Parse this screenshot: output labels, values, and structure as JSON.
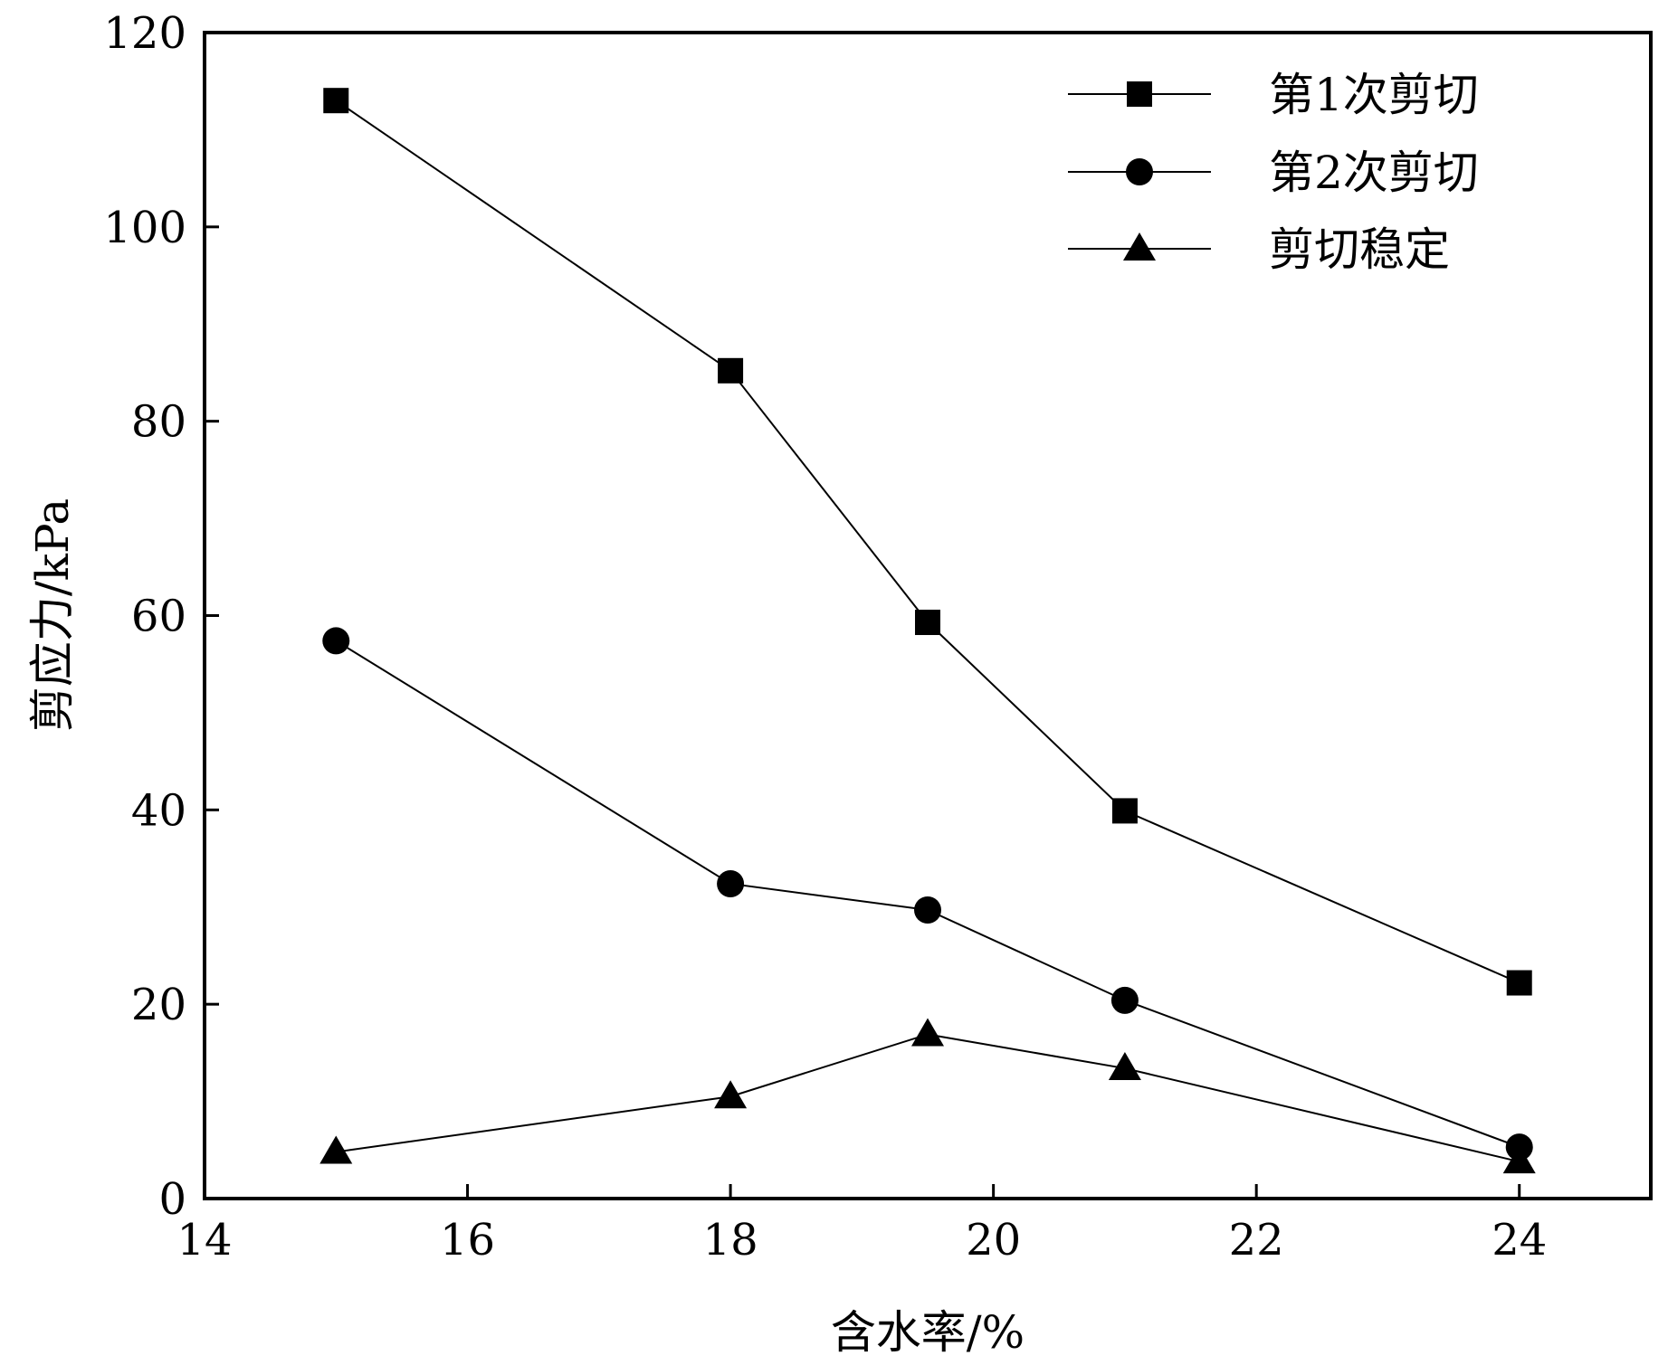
{
  "chart_data": {
    "type": "line",
    "title": "",
    "xlabel": "含水率/%",
    "ylabel": "剪应力/kPa",
    "xlim": [
      14,
      25
    ],
    "ylim": [
      0,
      120
    ],
    "xticks": [
      14,
      16,
      18,
      20,
      22,
      24
    ],
    "yticks": [
      0,
      20,
      40,
      60,
      80,
      100,
      120
    ],
    "grid": false,
    "legend_position": "top-right",
    "series": [
      {
        "name": "第1次剪切",
        "marker": "square",
        "color": "#000000",
        "x": [
          15,
          18,
          19.5,
          21,
          24
        ],
        "y": [
          113,
          85.2,
          59.3,
          39.9,
          22.2
        ]
      },
      {
        "name": "第2次剪切",
        "marker": "circle",
        "color": "#000000",
        "x": [
          15,
          18,
          19.5,
          21,
          24
        ],
        "y": [
          57.4,
          32.4,
          29.7,
          20.4,
          5.3
        ]
      },
      {
        "name": "剪切稳定",
        "marker": "triangle",
        "color": "#000000",
        "x": [
          15,
          18,
          19.5,
          21,
          24
        ],
        "y": [
          4.8,
          10.5,
          16.9,
          13.4,
          3.8
        ]
      }
    ]
  }
}
